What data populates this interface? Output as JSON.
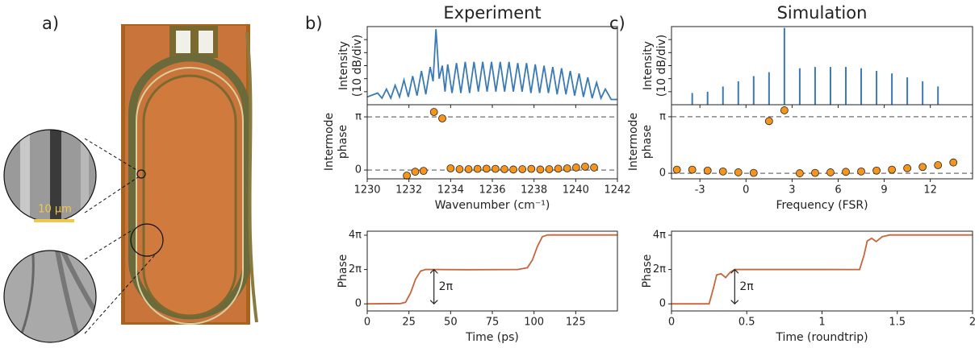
{
  "panel_a": {
    "label": "a)",
    "scale_bar": "10 µm"
  },
  "chart_data": [
    {
      "type": "line",
      "label": "b)",
      "title": "Experiment",
      "ylabel": [
        "Intensity",
        "(10 dB/div)"
      ],
      "color": "#3a7ab5",
      "x": [
        1230,
        1230.5,
        1230.71,
        1230.92,
        1231.13,
        1231.34,
        1231.55,
        1231.76,
        1231.97,
        1232.18,
        1232.39,
        1232.6,
        1232.81,
        1233.02,
        1233.16,
        1233.3,
        1233.45,
        1233.6,
        1233.73,
        1233.86,
        1234.07,
        1234.28,
        1234.49,
        1234.7,
        1234.91,
        1235.12,
        1235.33,
        1235.54,
        1235.75,
        1235.96,
        1236.17,
        1236.38,
        1236.59,
        1236.8,
        1237.01,
        1237.22,
        1237.43,
        1237.64,
        1237.85,
        1238.06,
        1238.27,
        1238.48,
        1238.69,
        1238.9,
        1239.11,
        1239.32,
        1239.53,
        1239.74,
        1239.95,
        1240.16,
        1240.37,
        1240.58,
        1240.79,
        1241.0,
        1241.21,
        1241.42,
        1241.7,
        1242
      ],
      "values": [
        0.6,
        0.9,
        0.5,
        1.2,
        0.5,
        1.5,
        0.6,
        1.9,
        0.6,
        2.2,
        0.7,
        2.6,
        0.8,
        2.9,
        1.8,
        5.8,
        2.0,
        3.0,
        1.0,
        3.1,
        0.9,
        3.2,
        0.9,
        3.3,
        0.9,
        3.3,
        1.0,
        3.3,
        1.0,
        3.3,
        1.0,
        3.3,
        1.0,
        3.3,
        1.0,
        3.2,
        1.0,
        3.2,
        0.9,
        3.1,
        0.9,
        3.0,
        0.9,
        2.9,
        0.8,
        2.8,
        0.8,
        2.6,
        0.7,
        2.4,
        0.6,
        2.1,
        0.5,
        1.7,
        0.5,
        1.2,
        0.4,
        0.4
      ],
      "xlim": [
        1230,
        1242
      ],
      "xticks": [
        1230,
        1232,
        1234,
        1236,
        1238,
        1240,
        1242
      ],
      "xtick_labels": false,
      "ylim": [
        0,
        6
      ],
      "yticks": [
        1,
        2,
        3,
        4,
        5
      ],
      "ytick_labels": false
    },
    {
      "type": "scatter",
      "ylabel": [
        "Intermode",
        "phase"
      ],
      "xlabel": "Wavenumber (cm⁻¹)",
      "color": "#f7941d",
      "x": [
        1231.9,
        1232.3,
        1232.7,
        1233.2,
        1233.6,
        1234.0,
        1234.43,
        1234.86,
        1235.29,
        1235.72,
        1236.15,
        1236.58,
        1237.01,
        1237.44,
        1237.87,
        1238.3,
        1238.73,
        1239.16,
        1239.59,
        1240.02,
        1240.45,
        1240.88
      ],
      "values": [
        -0.33,
        -0.1,
        -0.05,
        3.43,
        3.05,
        0.1,
        0.05,
        0.05,
        0.07,
        0.08,
        0.07,
        0.05,
        0.03,
        0.05,
        0.07,
        0.03,
        0.05,
        0.08,
        0.1,
        0.15,
        0.2,
        0.15
      ],
      "xlim": [
        1230,
        1242
      ],
      "xticks": [
        1230,
        1232,
        1234,
        1236,
        1238,
        1240,
        1242
      ],
      "ylim": [
        -0.52,
        3.86
      ],
      "yticks": [
        0,
        {
          "value": 3.14159,
          "label": "π"
        }
      ],
      "dashed_ylines": true
    },
    {
      "type": "line",
      "ylabel": "Phase",
      "xlabel": "Time (ps)",
      "color": "#c8643c",
      "x": [
        0,
        20,
        23,
        26,
        29,
        32,
        35,
        60,
        90,
        96,
        99,
        102,
        105,
        108,
        150
      ],
      "values": [
        0,
        0.05,
        0.3,
        2,
        4.5,
        6.0,
        6.3,
        6.25,
        6.28,
        6.6,
        8,
        10.5,
        12.3,
        12.6,
        12.6
      ],
      "xlim": [
        0,
        150
      ],
      "xticks": [
        0,
        25,
        50,
        75,
        100,
        125
      ],
      "ylim": [
        -1.3,
        13.3
      ],
      "yticks": [
        0,
        {
          "value": 6.283,
          "label": "2π"
        },
        {
          "value": 12.566,
          "label": "4π"
        }
      ],
      "annotation": {
        "text": "2π",
        "x": 40,
        "y": [
          0,
          6.283
        ]
      }
    },
    {
      "type": "stem",
      "label": "c)",
      "title": "Simulation",
      "ylabel": [
        "Intensity",
        "(10 dB/div)"
      ],
      "color": "#3a7ab5",
      "x": [
        -3.5,
        -2.5,
        -1.5,
        -0.5,
        0.5,
        1.5,
        2.5,
        3.5,
        4.5,
        5.5,
        6.5,
        7.5,
        8.5,
        9.5,
        10.5,
        11.5,
        12.5
      ],
      "values": [
        0.9,
        1.0,
        1.4,
        1.8,
        2.2,
        2.5,
        5.9,
        2.8,
        2.9,
        2.9,
        2.9,
        2.8,
        2.6,
        2.4,
        2.1,
        1.8,
        1.4
      ],
      "xlim": [
        -4.85,
        14.75
      ],
      "xticks": [
        -3,
        0,
        3,
        6,
        9,
        12
      ],
      "xtick_labels": false,
      "ylim": [
        0,
        6
      ],
      "yticks": [
        1,
        2,
        3,
        4,
        5
      ],
      "ytick_labels": false
    },
    {
      "type": "scatter",
      "ylabel": [
        "Intermode",
        "phase"
      ],
      "xlabel": "Frequency (FSR)",
      "color": "#f7941d",
      "x": [
        -4.5,
        -3.5,
        -2.5,
        -1.5,
        -0.5,
        0.5,
        1.5,
        2.5,
        3.5,
        4.5,
        5.5,
        6.5,
        7.5,
        8.5,
        9.5,
        10.5,
        11.5,
        12.5,
        13.5
      ],
      "values": [
        0.2,
        0.2,
        0.15,
        0.1,
        0.05,
        0.02,
        2.9,
        3.5,
        0.0,
        0.02,
        0.05,
        0.08,
        0.1,
        0.15,
        0.2,
        0.28,
        0.35,
        0.45,
        0.6
      ],
      "xlim": [
        -4.85,
        14.75
      ],
      "xticks": [
        -3,
        0,
        3,
        6,
        9,
        12
      ],
      "ylim": [
        -0.31,
        3.81
      ],
      "yticks": [
        0,
        {
          "value": 3.14159,
          "label": "π"
        }
      ],
      "dashed_ylines": true
    },
    {
      "type": "line",
      "ylabel": "Phase",
      "xlabel": "Time (roundtrip)",
      "color": "#c8643c",
      "x": [
        0,
        0.25,
        0.28,
        0.3,
        0.33,
        0.36,
        0.39,
        0.42,
        1.25,
        1.28,
        1.3,
        1.33,
        1.36,
        1.4,
        1.45,
        2
      ],
      "values": [
        0,
        0,
        3,
        5.3,
        5.5,
        4.8,
        5.8,
        6.3,
        6.28,
        9,
        11.5,
        12,
        11.4,
        12.3,
        12.6,
        12.6
      ],
      "xlim": [
        0,
        2
      ],
      "xticks": [
        0,
        0.5,
        1,
        1.5,
        2
      ],
      "ylim": [
        -1.3,
        13.3
      ],
      "yticks": [
        0,
        {
          "value": 6.283,
          "label": "2π"
        },
        {
          "value": 12.566,
          "label": "4π"
        }
      ],
      "annotation": {
        "text": "2π",
        "x": 0.42,
        "y": [
          0,
          6.283
        ]
      }
    }
  ]
}
